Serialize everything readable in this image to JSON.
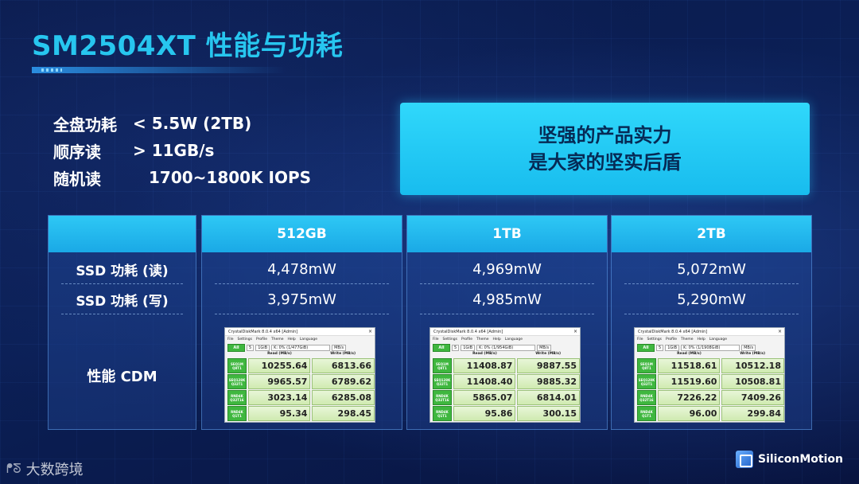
{
  "title": "SM2504XT 性能与功耗",
  "specs": [
    {
      "label": "全盘功耗",
      "value": "< 5.5W (2TB)"
    },
    {
      "label": "顺序读",
      "value": "> 11GB/s"
    },
    {
      "label": "随机读",
      "value": "1700~1800K IOPS"
    }
  ],
  "slogan": {
    "line1": "坚强的产品实力",
    "line2": "是大家的坚实后盾"
  },
  "table": {
    "row_labels": {
      "read": "SSD 功耗 (读)",
      "write": "SSD 功耗 (写)",
      "perf": "性能 CDM"
    },
    "columns": [
      {
        "capacity": "512GB",
        "read_power": "4,478mW",
        "write_power": "3,975mW",
        "cdm": {
          "title": "CrystalDiskMark 8.0.4 x64 [Admin]",
          "drive": "K: 0% (1/477GiB)",
          "results": [
            {
              "test": "SEQ1M",
              "q": "Q8T1",
              "read": "10255.64",
              "write": "6813.66"
            },
            {
              "test": "SEQ128K",
              "q": "Q32T1",
              "read": "9965.57",
              "write": "6789.62"
            },
            {
              "test": "RND4K",
              "q": "Q32T16",
              "read": "3023.14",
              "write": "6285.08"
            },
            {
              "test": "RND4K",
              "q": "Q1T1",
              "read": "95.34",
              "write": "298.45"
            }
          ]
        }
      },
      {
        "capacity": "1TB",
        "read_power": "4,969mW",
        "write_power": "4,985mW",
        "cdm": {
          "title": "CrystalDiskMark 8.0.4 x64 [Admin]",
          "drive": "K: 0% (1/954GiB)",
          "results": [
            {
              "test": "SEQ1M",
              "q": "Q8T1",
              "read": "11408.87",
              "write": "9887.55"
            },
            {
              "test": "SEQ128K",
              "q": "Q32T1",
              "read": "11408.40",
              "write": "9885.32"
            },
            {
              "test": "RND4K",
              "q": "Q32T16",
              "read": "5865.07",
              "write": "6814.01"
            },
            {
              "test": "RND4K",
              "q": "Q1T1",
              "read": "95.86",
              "write": "300.15"
            }
          ]
        }
      },
      {
        "capacity": "2TB",
        "read_power": "5,072mW",
        "write_power": "5,290mW",
        "cdm": {
          "title": "CrystalDiskMark 8.0.4 x64 [Admin]",
          "drive": "K: 0% (1/1908GiB)",
          "results": [
            {
              "test": "SEQ1M",
              "q": "Q8T1",
              "read": "11518.61",
              "write": "10512.18"
            },
            {
              "test": "SEQ128K",
              "q": "Q32T1",
              "read": "11519.60",
              "write": "10508.81"
            },
            {
              "test": "RND4K",
              "q": "Q32T16",
              "read": "7226.22",
              "write": "7409.26"
            },
            {
              "test": "RND4K",
              "q": "Q1T1",
              "read": "96.00",
              "write": "299.84"
            }
          ]
        }
      }
    ],
    "cdm_common": {
      "menu": [
        "File",
        "Settings",
        "Profile",
        "Theme",
        "Help",
        "Language"
      ],
      "all_label": "All",
      "count": "5",
      "size": "1GiB",
      "unit": "MB/s",
      "read_header": "Read (MB/s)",
      "write_header": "Write (MB/s)",
      "close": "×"
    }
  },
  "footer": {
    "left_brand": "大数跨境",
    "right_brand": "SiliconMotion"
  }
}
